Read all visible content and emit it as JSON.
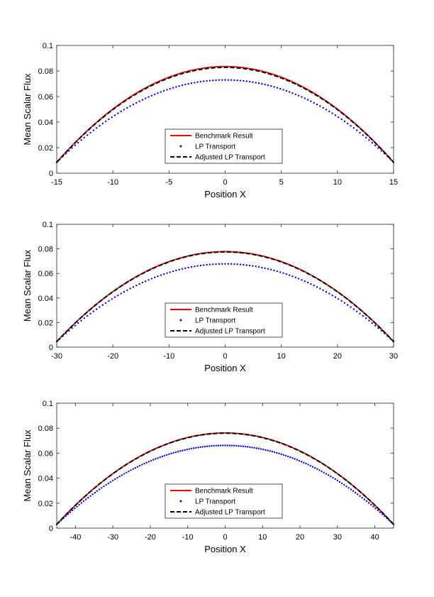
{
  "chart_data": [
    {
      "type": "line",
      "xlabel": "Position X",
      "ylabel": "Mean Scalar Flux",
      "xlim": [
        -15,
        15
      ],
      "ylim": [
        0,
        0.1
      ],
      "xticks": [
        -15,
        -10,
        -5,
        0,
        5,
        10,
        15
      ],
      "yticks": [
        0,
        0.02,
        0.04,
        0.06,
        0.08,
        0.1
      ],
      "xtick_labels": [
        "-15",
        "-10",
        "-5",
        "0",
        "5",
        "10",
        "15"
      ],
      "ytick_labels": [
        "0",
        "0.02",
        "0.04",
        "0.06",
        "0.08",
        "0.1"
      ],
      "legend_position": "bottom-center",
      "series": [
        {
          "name": "Benchmark Result",
          "style": "solid",
          "color": "#ff0000",
          "peak": 0.0835,
          "edge": 0.0085
        },
        {
          "name": "LP Transport",
          "style": "dotted",
          "color": "#0000ff",
          "peak": 0.073,
          "edge": 0.0085
        },
        {
          "name": "Adjusted LP Transport",
          "style": "dashed",
          "color": "#000000",
          "peak": 0.0828,
          "edge": 0.0085
        }
      ]
    },
    {
      "type": "line",
      "xlabel": "Position X",
      "ylabel": "Mean Scalar Flux",
      "xlim": [
        -30,
        30
      ],
      "ylim": [
        0,
        0.1
      ],
      "xticks": [
        -30,
        -20,
        -10,
        0,
        10,
        20,
        30
      ],
      "yticks": [
        0,
        0.02,
        0.04,
        0.06,
        0.08,
        0.1
      ],
      "xtick_labels": [
        "-30",
        "-20",
        "-10",
        "0",
        "10",
        "20",
        "30"
      ],
      "ytick_labels": [
        "0",
        "0.02",
        "0.04",
        "0.06",
        "0.08",
        "0.1"
      ],
      "legend_position": "bottom-center",
      "series": [
        {
          "name": "Benchmark Result",
          "style": "solid",
          "color": "#ff0000",
          "peak": 0.0778,
          "edge": 0.0045
        },
        {
          "name": "LP Transport",
          "style": "dotted",
          "color": "#0000ff",
          "peak": 0.0678,
          "edge": 0.0045
        },
        {
          "name": "Adjusted LP Transport",
          "style": "dashed",
          "color": "#000000",
          "peak": 0.0775,
          "edge": 0.0045
        }
      ]
    },
    {
      "type": "line",
      "xlabel": "Position X",
      "ylabel": "Mean Scalar Flux",
      "xlim": [
        -45,
        45
      ],
      "ylim": [
        0,
        0.1
      ],
      "xticks": [
        -40,
        -30,
        -20,
        -10,
        0,
        10,
        20,
        30,
        40
      ],
      "yticks": [
        0,
        0.02,
        0.04,
        0.06,
        0.08,
        0.1
      ],
      "xtick_labels": [
        "-40",
        "-30",
        "-20",
        "-10",
        "0",
        "10",
        "20",
        "30",
        "40"
      ],
      "ytick_labels": [
        "0",
        "0.02",
        "0.04",
        "0.06",
        "0.08",
        "0.1"
      ],
      "legend_position": "bottom-center",
      "series": [
        {
          "name": "Benchmark Result",
          "style": "solid",
          "color": "#ff0000",
          "peak": 0.0762,
          "edge": 0.003
        },
        {
          "name": "LP Transport",
          "style": "dotted",
          "color": "#0000ff",
          "peak": 0.0662,
          "edge": 0.003
        },
        {
          "name": "Adjusted LP Transport",
          "style": "dashed",
          "color": "#000000",
          "peak": 0.076,
          "edge": 0.003
        }
      ]
    }
  ]
}
